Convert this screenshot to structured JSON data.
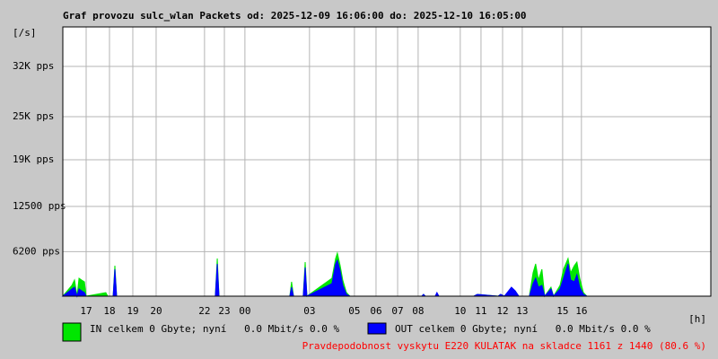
{
  "chart_data": {
    "type": "area",
    "title": "Graf provozu sulc_wlan Packets od: 2025-12-09 16:06:00 do: 2025-12-10 16:05:00",
    "y_unit": "[/s]",
    "x_unit": "[h]",
    "ylim": [
      0,
      37500
    ],
    "yticks": [
      {
        "value": 6200,
        "label": "6200 pps"
      },
      {
        "value": 12500,
        "label": "12500 pps"
      },
      {
        "value": 19000,
        "label": "19K pps"
      },
      {
        "value": 25000,
        "label": "25K pps"
      },
      {
        "value": 32000,
        "label": "32K pps"
      }
    ],
    "xlim": [
      0,
      30
    ],
    "xticks": [
      {
        "value": 1.08,
        "label": "17"
      },
      {
        "value": 2.16,
        "label": "18"
      },
      {
        "value": 3.24,
        "label": "19"
      },
      {
        "value": 4.32,
        "label": "20"
      },
      {
        "value": 6.56,
        "label": "22"
      },
      {
        "value": 7.48,
        "label": "23"
      },
      {
        "value": 8.43,
        "label": "00"
      },
      {
        "value": 11.42,
        "label": "03"
      },
      {
        "value": 13.5,
        "label": "05"
      },
      {
        "value": 14.5,
        "label": "06"
      },
      {
        "value": 15.5,
        "label": "07"
      },
      {
        "value": 16.45,
        "label": "08"
      },
      {
        "value": 18.4,
        "label": "10"
      },
      {
        "value": 19.36,
        "label": "11"
      },
      {
        "value": 20.36,
        "label": "12"
      },
      {
        "value": 21.27,
        "label": "13"
      },
      {
        "value": 23.14,
        "label": "15"
      },
      {
        "value": 24.01,
        "label": "16"
      }
    ],
    "grid": true,
    "x": [
      0,
      0.42,
      0.54,
      0.66,
      0.75,
      0.87,
      1.0,
      1.08,
      1.99,
      2.08,
      2.33,
      2.41,
      2.49,
      7.06,
      7.15,
      7.23,
      10.51,
      10.59,
      10.68,
      11.13,
      11.22,
      11.3,
      12.46,
      12.63,
      12.71,
      12.84,
      12.96,
      13.13,
      13.29,
      16.62,
      16.7,
      16.78,
      17.24,
      17.32,
      17.41,
      19.03,
      19.19,
      20.15,
      20.27,
      20.44,
      20.77,
      20.94,
      21.11,
      21.6,
      21.77,
      21.89,
      22.02,
      22.18,
      22.31,
      22.6,
      22.72,
      23.02,
      23.18,
      23.39,
      23.51,
      23.68,
      23.8,
      23.93,
      24.1,
      24.26
    ],
    "series": [
      {
        "name": "IN celkem 0 Gbyte; nyní   0.0 Mbit/s 0.0 %",
        "color": "#00e600",
        "values": [
          0,
          1500,
          2250,
          0,
          2500,
          2250,
          2000,
          0,
          500,
          0,
          0,
          4250,
          0,
          0,
          5250,
          0,
          0,
          2000,
          0,
          0,
          4750,
          0,
          2500,
          5250,
          6000,
          4250,
          2250,
          500,
          0,
          0,
          250,
          0,
          0,
          250,
          0,
          0,
          250,
          0,
          250,
          0,
          1000,
          750,
          0,
          0,
          3250,
          4500,
          2250,
          3750,
          0,
          1250,
          0,
          1500,
          3750,
          5250,
          3250,
          4250,
          4750,
          2500,
          500,
          0
        ]
      },
      {
        "name": "OUT celkem 0 Gbyte; nyní   0.0 Mbit/s 0.0 %",
        "color": "#0000ff",
        "values": [
          0,
          1000,
          1250,
          0,
          1000,
          750,
          500,
          0,
          0,
          0,
          0,
          3750,
          0,
          0,
          4500,
          0,
          0,
          1250,
          0,
          0,
          4000,
          0,
          1750,
          4500,
          5000,
          3500,
          1500,
          250,
          0,
          0,
          250,
          0,
          0,
          500,
          0,
          0,
          250,
          0,
          250,
          0,
          1250,
          750,
          0,
          0,
          1750,
          2500,
          1250,
          1500,
          0,
          1000,
          0,
          1000,
          2500,
          4500,
          2250,
          2000,
          3000,
          1250,
          250,
          0
        ]
      }
    ],
    "note": "Pravdepodobnost vyskytu E220 KULATAK na skladce 1161 z 1440 (80.6 %)"
  }
}
